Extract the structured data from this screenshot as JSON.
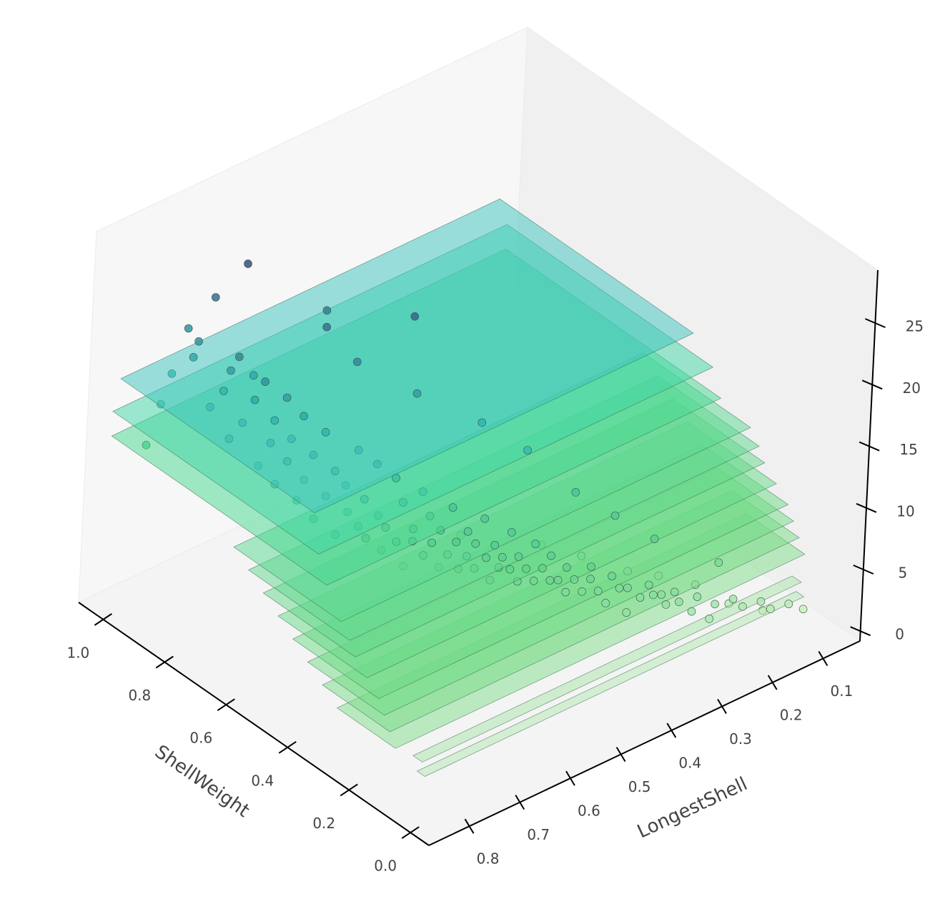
{
  "chart_data": {
    "type": "scatter",
    "projection": "3d",
    "title": "",
    "xlabel": "ShellWeight",
    "ylabel": "LongestShell",
    "zlabel": "",
    "xlim": [
      -0.06,
      1.08
    ],
    "ylim": [
      0.027,
      0.88
    ],
    "zlim": [
      -0.8,
      29.3
    ],
    "xticks": [
      "0.0",
      "0.2",
      "0.4",
      "0.6",
      "0.8",
      "1.0"
    ],
    "yticks": [
      "0.1",
      "0.2",
      "0.3",
      "0.4",
      "0.5",
      "0.6",
      "0.7",
      "0.8"
    ],
    "zticks": [
      "0",
      "5",
      "10",
      "15",
      "20",
      "25"
    ],
    "grid": false,
    "colors": {
      "low": "#c9eec0",
      "mid": "#5fd38c",
      "high": "#2fb6b0",
      "top": "#3b4d80",
      "pane_left": "#f7f7f7",
      "pane_right": "#f0f0f0",
      "pane_floor": "#f4f4f4"
    },
    "planes": [
      {
        "z": 20,
        "x": [
          0.32,
          0.95
        ],
        "y": [
          0.15,
          0.9
        ],
        "color": "#3cc4c0"
      },
      {
        "z": 17,
        "x": [
          0.3,
          0.97
        ],
        "y": [
          0.12,
          0.9
        ],
        "color": "#3fd6a6"
      },
      {
        "z": 15,
        "x": [
          0.27,
          0.97
        ],
        "y": [
          0.12,
          0.9
        ],
        "color": "#46d88f"
      },
      {
        "z": 12,
        "x": [
          0.25,
          0.6
        ],
        "y": [
          0.07,
          0.88
        ],
        "color": "#5ad892"
      },
      {
        "z": 11,
        "x": [
          0.22,
          0.55
        ],
        "y": [
          0.07,
          0.88
        ],
        "color": "#5fd88e"
      },
      {
        "z": 10,
        "x": [
          0.2,
          0.5
        ],
        "y": [
          0.07,
          0.88
        ],
        "color": "#62d88a"
      },
      {
        "z": 9,
        "x": [
          0.16,
          0.45
        ],
        "y": [
          0.07,
          0.88
        ],
        "color": "#66d985"
      },
      {
        "z": 8,
        "x": [
          0.12,
          0.4
        ],
        "y": [
          0.07,
          0.88
        ],
        "color": "#6bda84"
      },
      {
        "z": 7,
        "x": [
          0.1,
          0.35
        ],
        "y": [
          0.07,
          0.88
        ],
        "color": "#72db86"
      },
      {
        "z": 6,
        "x": [
          0.08,
          0.3
        ],
        "y": [
          0.07,
          0.88
        ],
        "color": "#78dc88"
      },
      {
        "z": 5,
        "x": [
          0.06,
          0.25
        ],
        "y": [
          0.07,
          0.88
        ],
        "color": "#80de8c"
      },
      {
        "z": 4,
        "x": [
          0.02,
          0.05
        ],
        "y": [
          0.1,
          0.85
        ],
        "color": "#a8e6a8"
      },
      {
        "z": 3,
        "x": [
          0.01,
          0.035
        ],
        "y": [
          0.1,
          0.85
        ],
        "color": "#b2e8b0"
      }
    ],
    "points": [
      [
        0.01,
        0.1,
        2
      ],
      [
        0.01,
        0.13,
        3
      ],
      [
        0.02,
        0.16,
        3
      ],
      [
        0.02,
        0.18,
        4
      ],
      [
        0.03,
        0.21,
        4
      ],
      [
        0.03,
        0.23,
        5
      ],
      [
        0.04,
        0.26,
        5
      ],
      [
        0.04,
        0.27,
        4
      ],
      [
        0.05,
        0.29,
        6
      ],
      [
        0.05,
        0.3,
        5
      ],
      [
        0.06,
        0.32,
        6
      ],
      [
        0.06,
        0.33,
        7
      ],
      [
        0.07,
        0.34,
        6
      ],
      [
        0.07,
        0.35,
        7
      ],
      [
        0.08,
        0.36,
        7
      ],
      [
        0.08,
        0.37,
        8
      ],
      [
        0.09,
        0.38,
        7
      ],
      [
        0.1,
        0.4,
        8
      ],
      [
        0.1,
        0.4,
        6
      ],
      [
        0.11,
        0.41,
        8
      ],
      [
        0.12,
        0.42,
        9
      ],
      [
        0.12,
        0.43,
        7
      ],
      [
        0.13,
        0.44,
        8
      ],
      [
        0.14,
        0.45,
        9
      ],
      [
        0.14,
        0.45,
        10
      ],
      [
        0.15,
        0.46,
        8
      ],
      [
        0.16,
        0.47,
        9
      ],
      [
        0.17,
        0.48,
        10
      ],
      [
        0.17,
        0.48,
        8
      ],
      [
        0.18,
        0.49,
        9
      ],
      [
        0.19,
        0.5,
        11
      ],
      [
        0.19,
        0.5,
        9
      ],
      [
        0.2,
        0.51,
        10
      ],
      [
        0.21,
        0.52,
        9
      ],
      [
        0.21,
        0.52,
        12
      ],
      [
        0.22,
        0.53,
        10
      ],
      [
        0.23,
        0.54,
        11
      ],
      [
        0.23,
        0.54,
        9
      ],
      [
        0.24,
        0.55,
        10
      ],
      [
        0.24,
        0.55,
        13
      ],
      [
        0.25,
        0.56,
        11
      ],
      [
        0.26,
        0.56,
        10
      ],
      [
        0.26,
        0.57,
        12
      ],
      [
        0.27,
        0.57,
        9
      ],
      [
        0.27,
        0.58,
        11
      ],
      [
        0.28,
        0.58,
        14
      ],
      [
        0.29,
        0.59,
        10
      ],
      [
        0.29,
        0.59,
        12
      ],
      [
        0.3,
        0.6,
        11
      ],
      [
        0.3,
        0.6,
        13
      ],
      [
        0.31,
        0.61,
        10
      ],
      [
        0.32,
        0.61,
        12
      ],
      [
        0.32,
        0.62,
        15
      ],
      [
        0.33,
        0.62,
        11
      ],
      [
        0.34,
        0.63,
        13
      ],
      [
        0.34,
        0.63,
        10
      ],
      [
        0.35,
        0.64,
        12
      ],
      [
        0.36,
        0.64,
        14
      ],
      [
        0.36,
        0.65,
        11
      ],
      [
        0.37,
        0.65,
        16
      ],
      [
        0.38,
        0.66,
        12
      ],
      [
        0.38,
        0.66,
        13
      ],
      [
        0.39,
        0.67,
        10
      ],
      [
        0.4,
        0.67,
        15
      ],
      [
        0.4,
        0.68,
        12
      ],
      [
        0.41,
        0.68,
        17
      ],
      [
        0.42,
        0.69,
        13
      ],
      [
        0.43,
        0.69,
        11
      ],
      [
        0.43,
        0.7,
        14
      ],
      [
        0.44,
        0.7,
        18
      ],
      [
        0.45,
        0.71,
        12
      ],
      [
        0.46,
        0.71,
        15
      ],
      [
        0.46,
        0.72,
        13
      ],
      [
        0.47,
        0.72,
        19
      ],
      [
        0.48,
        0.73,
        14
      ],
      [
        0.49,
        0.73,
        16
      ],
      [
        0.5,
        0.74,
        12
      ],
      [
        0.5,
        0.6,
        27
      ],
      [
        0.51,
        0.74,
        17
      ],
      [
        0.52,
        0.75,
        15
      ],
      [
        0.53,
        0.75,
        20
      ],
      [
        0.54,
        0.76,
        13
      ],
      [
        0.55,
        0.76,
        18
      ],
      [
        0.56,
        0.77,
        16
      ],
      [
        0.57,
        0.77,
        21
      ],
      [
        0.58,
        0.77,
        14
      ],
      [
        0.59,
        0.78,
        19
      ],
      [
        0.6,
        0.78,
        17
      ],
      [
        0.61,
        0.78,
        22
      ],
      [
        0.62,
        0.79,
        15
      ],
      [
        0.63,
        0.79,
        20
      ],
      [
        0.64,
        0.79,
        18
      ],
      [
        0.65,
        0.8,
        23
      ],
      [
        0.66,
        0.8,
        16
      ],
      [
        0.68,
        0.8,
        21
      ],
      [
        0.7,
        0.81,
        19
      ],
      [
        0.72,
        0.81,
        24
      ],
      [
        0.74,
        0.81,
        17
      ],
      [
        0.76,
        0.8,
        22
      ],
      [
        0.78,
        0.8,
        20
      ],
      [
        0.8,
        0.75,
        29
      ],
      [
        0.82,
        0.8,
        18
      ],
      [
        0.85,
        0.81,
        23
      ],
      [
        0.88,
        0.8,
        21
      ],
      [
        0.9,
        0.8,
        23
      ],
      [
        0.93,
        0.81,
        19
      ],
      [
        0.96,
        0.81,
        16
      ],
      [
        1.0,
        0.81,
        12
      ],
      [
        0.7,
        0.65,
        25
      ],
      [
        0.62,
        0.7,
        26
      ],
      [
        0.55,
        0.68,
        24
      ],
      [
        0.45,
        0.62,
        22
      ],
      [
        0.35,
        0.55,
        20
      ],
      [
        0.28,
        0.5,
        18
      ],
      [
        0.85,
        0.78,
        26
      ],
      [
        0.75,
        0.76,
        21
      ],
      [
        0.15,
        0.4,
        13
      ],
      [
        0.1,
        0.35,
        11
      ],
      [
        0.2,
        0.45,
        15
      ],
      [
        0.05,
        0.25,
        8
      ],
      [
        0.09,
        0.2,
        3
      ],
      [
        0.12,
        0.25,
        5
      ],
      [
        0.16,
        0.3,
        6
      ],
      [
        0.06,
        0.15,
        2
      ],
      [
        0.25,
        0.4,
        8
      ],
      [
        0.3,
        0.45,
        9
      ],
      [
        0.18,
        0.35,
        7
      ],
      [
        0.4,
        0.55,
        10
      ]
    ]
  }
}
